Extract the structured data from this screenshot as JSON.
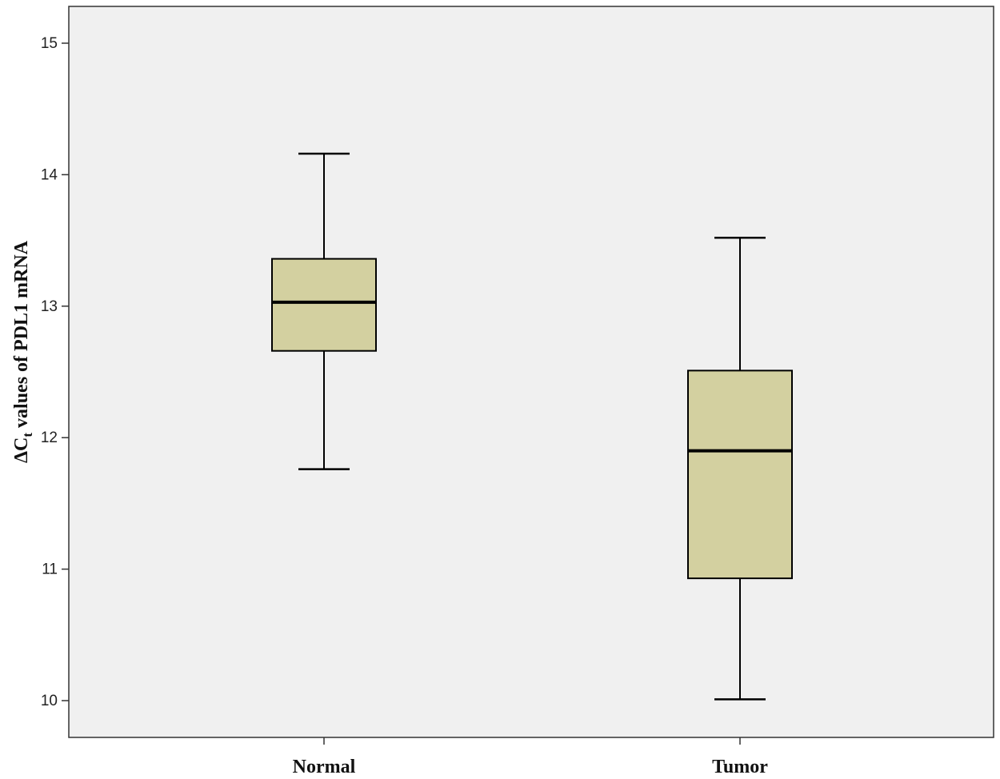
{
  "chart_data": {
    "type": "boxplot",
    "title": "",
    "xlabel": "",
    "ylabel": {
      "prefix": "ΔC",
      "subscript": "t",
      "suffix": " values of PDL1 mRNA"
    },
    "categories": [
      "Normal",
      "Tumor"
    ],
    "series": [
      {
        "category": "Normal",
        "min": 11.76,
        "q1": 12.66,
        "median": 13.03,
        "q3": 13.36,
        "max": 14.16
      },
      {
        "category": "Tumor",
        "min": 10.01,
        "q1": 10.93,
        "median": 11.9,
        "q3": 12.51,
        "max": 13.52
      }
    ],
    "yticks": [
      10,
      11,
      12,
      13,
      14,
      15
    ],
    "ylim": [
      9.7,
      15.3
    ],
    "grid": false,
    "colors": {
      "plot_background": "#f0f0f0",
      "box_fill": "#d3d0a0",
      "stroke": "#000000"
    }
  }
}
